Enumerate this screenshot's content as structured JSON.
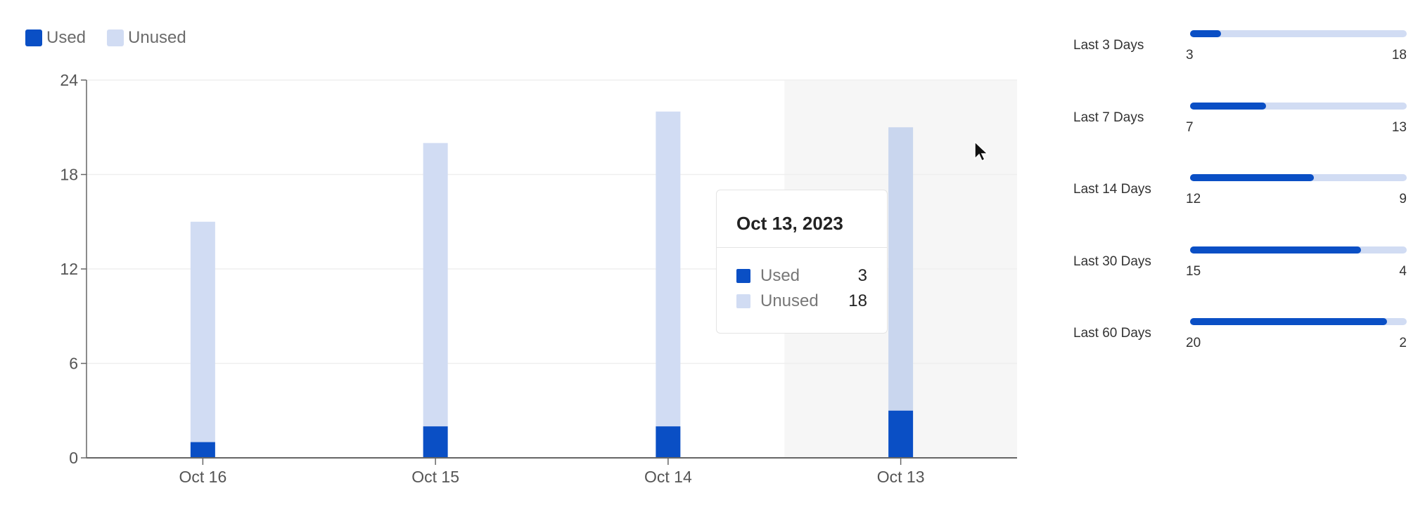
{
  "colors": {
    "used": "#0a4fc5",
    "unused": "#d1dcf3",
    "highlight": "#f6f6f6"
  },
  "legend": [
    {
      "label": "Used",
      "color": "#0a4fc5"
    },
    {
      "label": "Unused",
      "color": "#d1dcf3"
    }
  ],
  "chart_data": {
    "type": "bar",
    "stacked": true,
    "categories": [
      "Oct 16",
      "Oct 15",
      "Oct 14",
      "Oct 13"
    ],
    "series": [
      {
        "name": "Used",
        "values": [
          1,
          2,
          2,
          3
        ]
      },
      {
        "name": "Unused",
        "values": [
          14,
          18,
          20,
          18
        ]
      }
    ],
    "ylim": [
      0,
      24
    ],
    "yticks": [
      "0",
      "6",
      "12",
      "18",
      "24"
    ],
    "grid": true,
    "legend_position": "top-left",
    "highlighted_category": "Oct 13"
  },
  "tooltip": {
    "title": "Oct 13, 2023",
    "rows": [
      {
        "label": "Used",
        "value": "3"
      },
      {
        "label": "Unused",
        "value": "18"
      }
    ]
  },
  "summary": [
    {
      "label": "Last 3 Days",
      "used": "3",
      "unused": "18",
      "used_fraction": 0.143
    },
    {
      "label": "Last 7 Days",
      "used": "7",
      "unused": "13",
      "used_fraction": 0.35
    },
    {
      "label": "Last 14 Days",
      "used": "12",
      "unused": "9",
      "used_fraction": 0.571
    },
    {
      "label": "Last 30 Days",
      "used": "15",
      "unused": "4",
      "used_fraction": 0.79
    },
    {
      "label": "Last 60 Days",
      "used": "20",
      "unused": "2",
      "used_fraction": 0.909
    }
  ]
}
